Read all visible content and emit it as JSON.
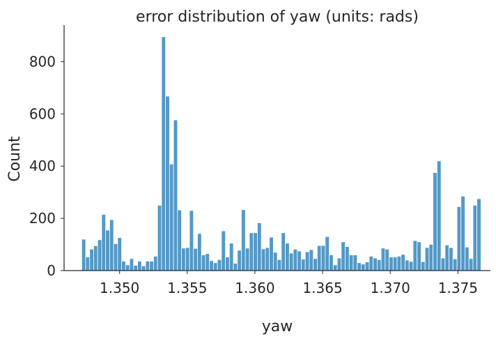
{
  "chart_data": {
    "type": "bar",
    "subtype": "histogram",
    "title": "error distribution of yaw (units: rads)",
    "xlabel": "yaw",
    "ylabel": "Count",
    "xlim": [
      1.3459,
      1.3774
    ],
    "ylim": [
      0,
      940
    ],
    "bin_start": 1.3472,
    "bin_width": 0.000295,
    "x_ticks": [
      {
        "value": 1.35,
        "label": "1.350"
      },
      {
        "value": 1.355,
        "label": "1.355"
      },
      {
        "value": 1.36,
        "label": "1.360"
      },
      {
        "value": 1.365,
        "label": "1.365"
      },
      {
        "value": 1.37,
        "label": "1.370"
      },
      {
        "value": 1.375,
        "label": "1.375"
      }
    ],
    "y_ticks": [
      {
        "value": 0,
        "label": "0"
      },
      {
        "value": 200,
        "label": "200"
      },
      {
        "value": 400,
        "label": "400"
      },
      {
        "value": 600,
        "label": "600"
      },
      {
        "value": 800,
        "label": "800"
      }
    ],
    "bar_color": "#5499c7",
    "grid": false,
    "values": [
      120,
      52,
      82,
      95,
      118,
      215,
      155,
      195,
      103,
      126,
      36,
      22,
      46,
      20,
      36,
      18,
      36,
      36,
      55,
      250,
      895,
      668,
      408,
      577,
      232,
      86,
      88,
      230,
      85,
      142,
      60,
      65,
      38,
      30,
      42,
      152,
      52,
      105,
      28,
      78,
      233,
      86,
      145,
      145,
      183,
      83,
      88,
      128,
      70,
      42,
      145,
      105,
      67,
      82,
      75,
      44,
      72,
      80,
      46,
      96,
      96,
      130,
      60,
      22,
      48,
      110,
      92,
      60,
      60,
      30,
      25,
      33,
      55,
      48,
      42,
      86,
      82,
      52,
      52,
      55,
      62,
      40,
      35,
      115,
      110,
      34,
      88,
      100,
      375,
      420,
      48,
      98,
      88,
      45,
      245,
      285,
      90,
      46,
      250,
      275
    ]
  }
}
